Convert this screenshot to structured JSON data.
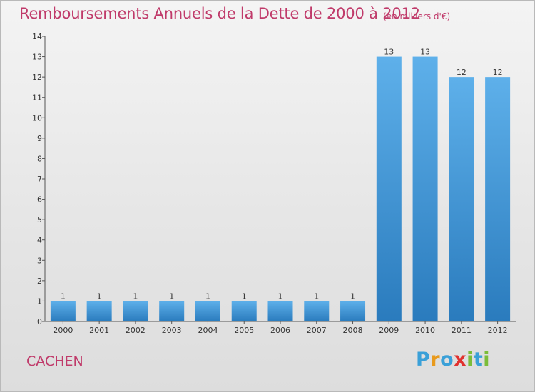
{
  "header": {
    "title": "Remboursements Annuels de la Dette de 2000 à 2012",
    "unit": "(en milliers d'€)"
  },
  "footer": {
    "commune": "CACHEN",
    "logo_letters": [
      "P",
      "r",
      "o",
      "x",
      "i",
      "t",
      "i"
    ],
    "logo_colors": [
      "#3aa0d8",
      "#e89a1d",
      "#3aa0d8",
      "#e0312e",
      "#7bbd3a",
      "#3aa0d8",
      "#7bbd3a"
    ]
  },
  "colors": {
    "bar_top": "#5eb0ea",
    "bar_bottom": "#2a7bbd",
    "axis": "#555555"
  },
  "chart_data": {
    "type": "bar",
    "title": "Remboursements Annuels de la Dette de 2000 à 2012",
    "subtitle": "(en milliers d'€)",
    "xlabel": "",
    "ylabel": "",
    "categories": [
      "2000",
      "2001",
      "2002",
      "2003",
      "2004",
      "2005",
      "2006",
      "2007",
      "2008",
      "2009",
      "2010",
      "2011",
      "2012"
    ],
    "values": [
      1,
      1,
      1,
      1,
      1,
      1,
      1,
      1,
      1,
      13,
      13,
      12,
      12
    ],
    "data_labels": [
      "1",
      "1",
      "1",
      "1",
      "1",
      "1",
      "1",
      "1",
      "1",
      "13",
      "13",
      "12",
      "12"
    ],
    "ylim": [
      0,
      14
    ],
    "yticks": [
      "0",
      "1",
      "2",
      "3",
      "4",
      "5",
      "6",
      "7",
      "8",
      "9",
      "10",
      "11",
      "12",
      "13",
      "14"
    ],
    "grid": false,
    "legend": "none"
  }
}
